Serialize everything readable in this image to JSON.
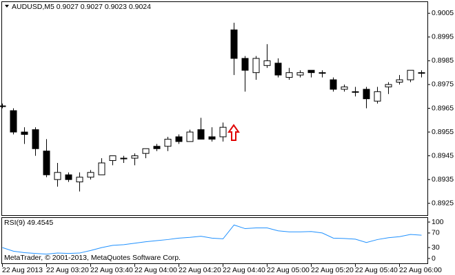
{
  "chart_data": [
    {
      "type": "candlestick",
      "title": "AUDUSD,M5  0.9027 0.9027 0.9023 0.9024",
      "categories": [
        "22 Aug 2013",
        null,
        null,
        null,
        "22 Aug 03:20",
        null,
        null,
        null,
        "22 Aug 03:40",
        null,
        null,
        null,
        "22 Aug 04:00",
        null,
        null,
        null,
        "22 Aug 04:20",
        null,
        null,
        null,
        "22 Aug 04:40",
        null,
        null,
        null,
        "22 Aug 05:00",
        null,
        null,
        null,
        "22 Aug 05:20",
        null,
        null,
        null,
        "22 Aug 05:40",
        null,
        null,
        null,
        "22 Aug 06:00",
        null,
        null
      ],
      "open": [
        0.8966,
        0.8964,
        0.8955,
        0.8956,
        0.8947,
        0.8935,
        0.8937,
        0.8934,
        0.8936,
        0.8937,
        0.8943,
        0.8944,
        0.8944,
        0.8946,
        0.8949,
        0.8949,
        0.8953,
        0.8951,
        0.8956,
        0.8953,
        0.8953,
        0.8998,
        0.8986,
        0.898,
        0.8983,
        0.8984,
        0.8978,
        0.8979,
        0.8981,
        0.898,
        0.8977,
        0.8973,
        0.8972,
        0.8973,
        0.8968,
        0.8974,
        0.8976,
        0.8977,
        0.898
      ],
      "high": [
        0.8967,
        0.8965,
        0.8957,
        0.8957,
        0.8952,
        0.8942,
        0.8938,
        0.8938,
        0.8939,
        0.8944,
        0.8945,
        0.8945,
        0.8946,
        0.8948,
        0.895,
        0.8953,
        0.8954,
        0.8956,
        0.8961,
        0.8957,
        0.8959,
        0.9001,
        0.8987,
        0.8987,
        0.8992,
        0.8986,
        0.8982,
        0.8981,
        0.8981,
        0.8981,
        0.8978,
        0.8975,
        0.8974,
        0.8974,
        0.8974,
        0.8976,
        0.8979,
        0.8981,
        0.8981
      ],
      "low": [
        0.8965,
        0.8954,
        0.895,
        0.8945,
        0.8936,
        0.8932,
        0.8934,
        0.893,
        0.8935,
        0.8937,
        0.8941,
        0.8942,
        0.8941,
        0.8944,
        0.8947,
        0.8947,
        0.895,
        0.8951,
        0.8952,
        0.8951,
        0.8951,
        0.8979,
        0.8972,
        0.8977,
        0.8982,
        0.8978,
        0.8977,
        0.8978,
        0.8978,
        0.8978,
        0.8972,
        0.8972,
        0.897,
        0.8965,
        0.8967,
        0.8971,
        0.8975,
        0.8976,
        0.8978
      ],
      "close": [
        0.8966,
        0.8955,
        0.8954,
        0.8948,
        0.8937,
        0.8938,
        0.8935,
        0.8936,
        0.8938,
        0.8942,
        0.8945,
        0.8944,
        0.8945,
        0.8948,
        0.8948,
        0.8952,
        0.8951,
        0.8955,
        0.8952,
        0.8952,
        0.8957,
        0.8986,
        0.8981,
        0.8986,
        0.8985,
        0.8979,
        0.898,
        0.898,
        0.898,
        0.898,
        0.8973,
        0.8974,
        0.8972,
        0.8969,
        0.8972,
        0.8975,
        0.8977,
        0.8981,
        0.898
      ],
      "up_color": "#ffffff",
      "down_color": "#000000",
      "wick_color": "#000000",
      "ylim": [
        0.892,
        0.901
      ],
      "yticks": [
        0.8925,
        0.8935,
        0.8945,
        0.8955,
        0.8965,
        0.8975,
        0.8985,
        0.8995,
        0.9005
      ]
    },
    {
      "type": "line",
      "title": "RSI(9) 49.4545",
      "values": [
        30,
        20,
        16,
        14,
        12,
        15,
        14,
        15,
        22,
        30,
        36,
        38,
        42,
        46,
        49,
        52,
        56,
        58,
        61,
        56,
        54,
        92,
        82,
        84,
        84,
        76,
        73,
        73,
        74,
        70,
        56,
        55,
        53,
        44,
        52,
        57,
        60,
        66,
        64
      ],
      "color": "#1e90ff",
      "ylim": [
        0,
        100
      ],
      "yticks": [
        0,
        30,
        70,
        100
      ]
    }
  ],
  "footer": "MetaTrader, © 2001-2013, MetaQuotes Software Corp."
}
